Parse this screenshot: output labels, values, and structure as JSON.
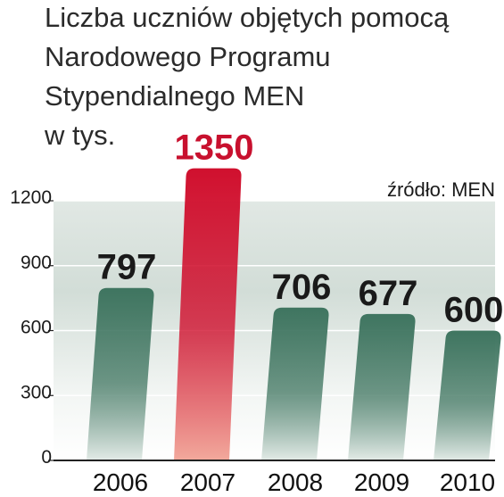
{
  "chart_data": {
    "type": "bar",
    "title_lines": [
      "Liczba uczniów objętych pomocą",
      "Narodowego Programu",
      "Stypendialnego MEN",
      "w tys."
    ],
    "source": "źródło: MEN",
    "categories": [
      "2006",
      "2007",
      "2008",
      "2009",
      "2010"
    ],
    "values": [
      797,
      1350,
      706,
      677,
      600
    ],
    "labels": [
      "797",
      "1350",
      "706",
      "677",
      "600"
    ],
    "highlight_index": 1,
    "yticks": [
      0,
      300,
      600,
      900,
      1200
    ],
    "ylim": [
      0,
      1200
    ],
    "grid": true,
    "colors": {
      "bar": "#3f7560",
      "bar_light": "#e3ebe7",
      "highlight": "#d0102e",
      "highlight_light": "#f2a99c",
      "label": "#1a1a1a",
      "highlight_label": "#c8102e"
    }
  }
}
